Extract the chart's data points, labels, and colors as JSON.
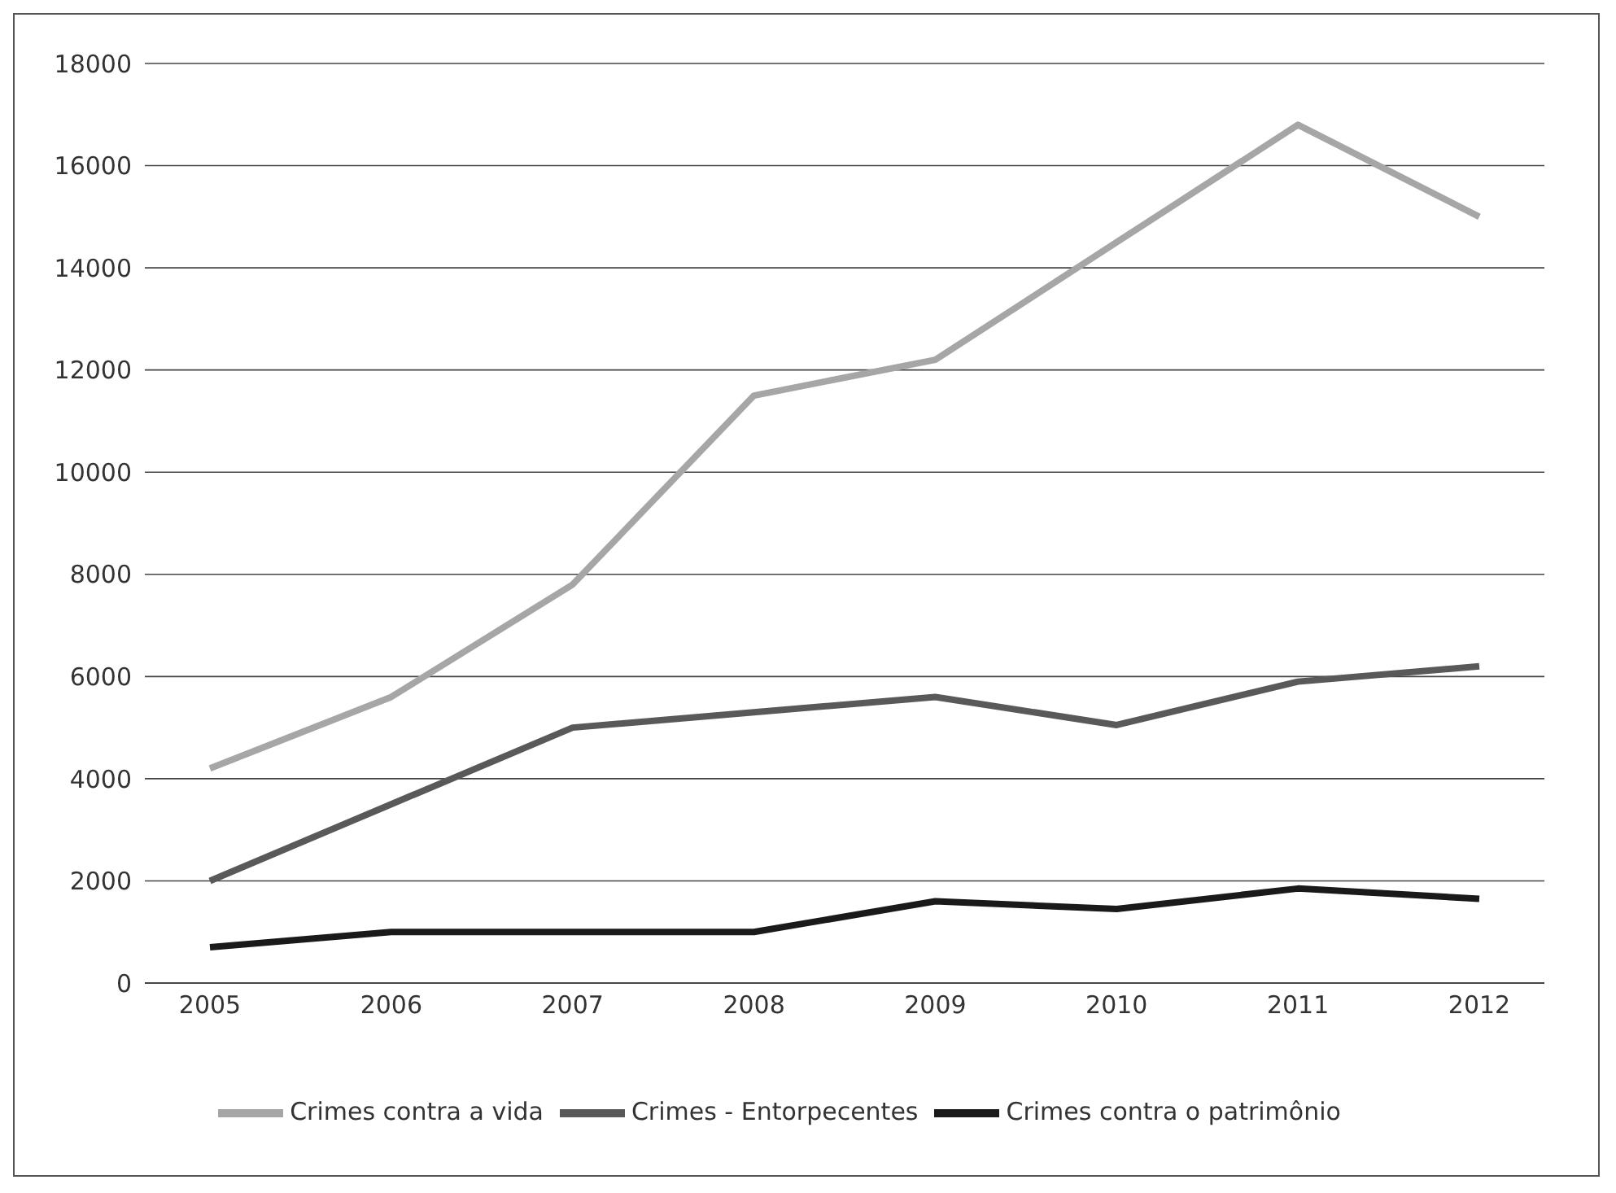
{
  "chart_data": {
    "type": "line",
    "categories": [
      "2005",
      "2006",
      "2007",
      "2008",
      "2009",
      "2010",
      "2011",
      "2012"
    ],
    "series": [
      {
        "name": "Crimes contra a vida",
        "color": "#a6a6a6",
        "values": [
          4200,
          5600,
          7800,
          11500,
          12200,
          14500,
          16800,
          15000
        ]
      },
      {
        "name": "Crimes - Entorpecentes",
        "color": "#595959",
        "values": [
          2000,
          3500,
          5000,
          5300,
          5600,
          5050,
          5900,
          6200
        ]
      },
      {
        "name": "Crimes contra o patrimônio",
        "color": "#1a1a1a",
        "values": [
          700,
          1000,
          1000,
          1000,
          1600,
          1450,
          1850,
          1650
        ]
      }
    ],
    "ylim": [
      0,
      18000
    ],
    "yticks": [
      0,
      2000,
      4000,
      6000,
      8000,
      10000,
      12000,
      14000,
      16000,
      18000
    ],
    "grid": "y",
    "legend": "bottom",
    "marker": "none",
    "line_style": "solid"
  }
}
